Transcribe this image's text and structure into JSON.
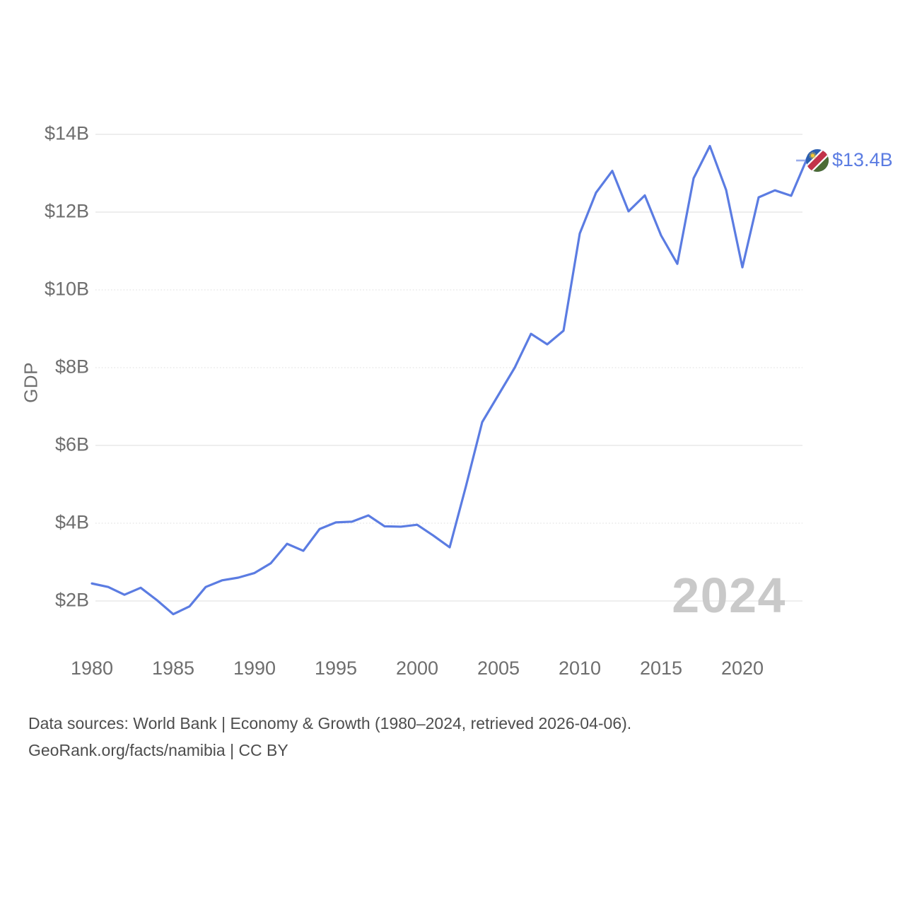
{
  "chart_data": {
    "type": "line",
    "title": "",
    "series_name": "GDP",
    "xlabel": "",
    "ylabel": "GDP",
    "x": [
      1980,
      1981,
      1982,
      1983,
      1984,
      1985,
      1986,
      1987,
      1988,
      1989,
      1990,
      1991,
      1992,
      1993,
      1994,
      1995,
      1996,
      1997,
      1998,
      1999,
      2000,
      2001,
      2002,
      2003,
      2004,
      2005,
      2006,
      2007,
      2008,
      2009,
      2010,
      2011,
      2012,
      2013,
      2014,
      2015,
      2016,
      2017,
      2018,
      2019,
      2020,
      2021,
      2022,
      2023,
      2024
    ],
    "values": [
      2.45,
      2.36,
      2.16,
      2.34,
      2.02,
      1.66,
      1.86,
      2.36,
      2.53,
      2.6,
      2.72,
      2.97,
      3.47,
      3.29,
      3.85,
      4.02,
      4.04,
      4.2,
      3.92,
      3.91,
      3.96,
      3.68,
      3.38,
      4.95,
      6.6,
      7.3,
      8.0,
      8.87,
      8.6,
      8.95,
      11.45,
      12.5,
      13.06,
      12.02,
      12.43,
      11.4,
      10.67,
      12.87,
      13.7,
      12.57,
      10.58,
      12.38,
      12.56,
      12.42,
      13.4
    ],
    "x_ticks": [
      "1980",
      "1985",
      "1990",
      "1995",
      "2000",
      "2005",
      "2010",
      "2015",
      "2020"
    ],
    "y_ticks": [
      {
        "label": "$2B",
        "value": 2,
        "style": "solid"
      },
      {
        "label": "$4B",
        "value": 4,
        "style": "dotted"
      },
      {
        "label": "$6B",
        "value": 6,
        "style": "solid"
      },
      {
        "label": "$8B",
        "value": 8,
        "style": "dotted"
      },
      {
        "label": "$10B",
        "value": 10,
        "style": "dotted"
      },
      {
        "label": "$12B",
        "value": 12,
        "style": "solid"
      },
      {
        "label": "$14B",
        "value": 14,
        "style": "solid"
      }
    ],
    "x_range": [
      1980,
      2024
    ],
    "grid": "horizontal",
    "legend_position": "none",
    "end_label": "$13.4B",
    "end_marker": "namibia-flag-icon",
    "watermark": "2024",
    "line_color": "#5b7ce2"
  },
  "footer": {
    "line1": "Data sources: World Bank | Economy & Growth (1980–2024, retrieved 2026-04-06).",
    "line2": "GeoRank.org/facts/namibia | CC BY"
  },
  "colors": {
    "line": "#5b7ce2",
    "end_label_text": "#5b7ce2",
    "axis_text": "#6e6e6e",
    "footer_text": "#4d4d4d",
    "gridline": "#e4e4e4",
    "watermark": "#c9c9c9",
    "connector_dash": "#9badea"
  },
  "icons": {
    "namibia_flag": {
      "name": "namibia-flag-icon",
      "blue": "#2c5fb0",
      "red": "#c2334a",
      "green": "#4c6b35",
      "white": "#ffffff",
      "sun_yellow": "#f3c731"
    }
  }
}
